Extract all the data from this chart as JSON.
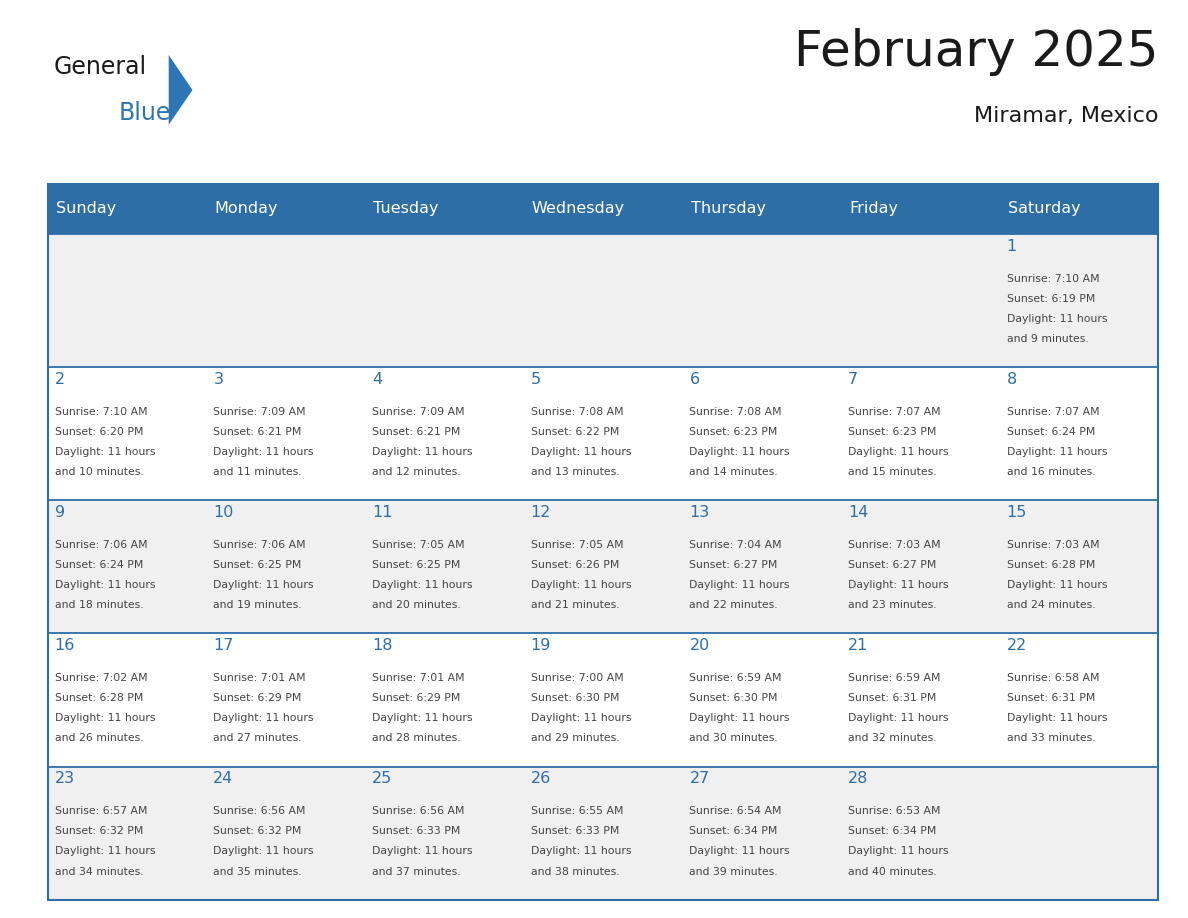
{
  "title": "February 2025",
  "subtitle": "Miramar, Mexico",
  "days_of_week": [
    "Sunday",
    "Monday",
    "Tuesday",
    "Wednesday",
    "Thursday",
    "Friday",
    "Saturday"
  ],
  "header_bg": "#2E6EA6",
  "header_text": "#FFFFFF",
  "cell_bg_even": "#F0F0F0",
  "cell_bg_odd": "#FFFFFF",
  "cell_border": "#2E6EA6",
  "day_num_color": "#2E6EA6",
  "text_color": "#444444",
  "title_color": "#1a1a1a",
  "background": "#FFFFFF",
  "logo_general_color": "#1a1a1a",
  "logo_blue_color": "#2E75B6",
  "calendar_data": [
    [
      null,
      null,
      null,
      null,
      null,
      null,
      {
        "day": 1,
        "sunrise": "7:10 AM",
        "sunset": "6:19 PM",
        "daylight": "11 hours and 9 minutes."
      }
    ],
    [
      {
        "day": 2,
        "sunrise": "7:10 AM",
        "sunset": "6:20 PM",
        "daylight": "11 hours and 10 minutes."
      },
      {
        "day": 3,
        "sunrise": "7:09 AM",
        "sunset": "6:21 PM",
        "daylight": "11 hours and 11 minutes."
      },
      {
        "day": 4,
        "sunrise": "7:09 AM",
        "sunset": "6:21 PM",
        "daylight": "11 hours and 12 minutes."
      },
      {
        "day": 5,
        "sunrise": "7:08 AM",
        "sunset": "6:22 PM",
        "daylight": "11 hours and 13 minutes."
      },
      {
        "day": 6,
        "sunrise": "7:08 AM",
        "sunset": "6:23 PM",
        "daylight": "11 hours and 14 minutes."
      },
      {
        "day": 7,
        "sunrise": "7:07 AM",
        "sunset": "6:23 PM",
        "daylight": "11 hours and 15 minutes."
      },
      {
        "day": 8,
        "sunrise": "7:07 AM",
        "sunset": "6:24 PM",
        "daylight": "11 hours and 16 minutes."
      }
    ],
    [
      {
        "day": 9,
        "sunrise": "7:06 AM",
        "sunset": "6:24 PM",
        "daylight": "11 hours and 18 minutes."
      },
      {
        "day": 10,
        "sunrise": "7:06 AM",
        "sunset": "6:25 PM",
        "daylight": "11 hours and 19 minutes."
      },
      {
        "day": 11,
        "sunrise": "7:05 AM",
        "sunset": "6:25 PM",
        "daylight": "11 hours and 20 minutes."
      },
      {
        "day": 12,
        "sunrise": "7:05 AM",
        "sunset": "6:26 PM",
        "daylight": "11 hours and 21 minutes."
      },
      {
        "day": 13,
        "sunrise": "7:04 AM",
        "sunset": "6:27 PM",
        "daylight": "11 hours and 22 minutes."
      },
      {
        "day": 14,
        "sunrise": "7:03 AM",
        "sunset": "6:27 PM",
        "daylight": "11 hours and 23 minutes."
      },
      {
        "day": 15,
        "sunrise": "7:03 AM",
        "sunset": "6:28 PM",
        "daylight": "11 hours and 24 minutes."
      }
    ],
    [
      {
        "day": 16,
        "sunrise": "7:02 AM",
        "sunset": "6:28 PM",
        "daylight": "11 hours and 26 minutes."
      },
      {
        "day": 17,
        "sunrise": "7:01 AM",
        "sunset": "6:29 PM",
        "daylight": "11 hours and 27 minutes."
      },
      {
        "day": 18,
        "sunrise": "7:01 AM",
        "sunset": "6:29 PM",
        "daylight": "11 hours and 28 minutes."
      },
      {
        "day": 19,
        "sunrise": "7:00 AM",
        "sunset": "6:30 PM",
        "daylight": "11 hours and 29 minutes."
      },
      {
        "day": 20,
        "sunrise": "6:59 AM",
        "sunset": "6:30 PM",
        "daylight": "11 hours and 30 minutes."
      },
      {
        "day": 21,
        "sunrise": "6:59 AM",
        "sunset": "6:31 PM",
        "daylight": "11 hours and 32 minutes."
      },
      {
        "day": 22,
        "sunrise": "6:58 AM",
        "sunset": "6:31 PM",
        "daylight": "11 hours and 33 minutes."
      }
    ],
    [
      {
        "day": 23,
        "sunrise": "6:57 AM",
        "sunset": "6:32 PM",
        "daylight": "11 hours and 34 minutes."
      },
      {
        "day": 24,
        "sunrise": "6:56 AM",
        "sunset": "6:32 PM",
        "daylight": "11 hours and 35 minutes."
      },
      {
        "day": 25,
        "sunrise": "6:56 AM",
        "sunset": "6:33 PM",
        "daylight": "11 hours and 37 minutes."
      },
      {
        "day": 26,
        "sunrise": "6:55 AM",
        "sunset": "6:33 PM",
        "daylight": "11 hours and 38 minutes."
      },
      {
        "day": 27,
        "sunrise": "6:54 AM",
        "sunset": "6:34 PM",
        "daylight": "11 hours and 39 minutes."
      },
      {
        "day": 28,
        "sunrise": "6:53 AM",
        "sunset": "6:34 PM",
        "daylight": "11 hours and 40 minutes."
      },
      null
    ]
  ]
}
